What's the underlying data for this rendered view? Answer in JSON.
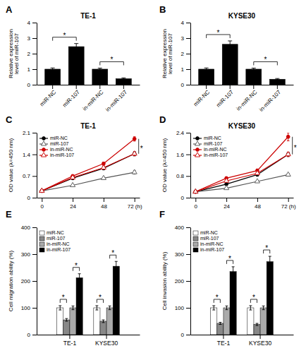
{
  "chart_data": [
    {
      "type": "bar",
      "panel_label": "A",
      "title": "TE-1",
      "categories": [
        "miR-NC",
        "miR-107",
        "in-miR-NC",
        "in-miR-107"
      ],
      "values": [
        1.0,
        2.45,
        1.0,
        0.38
      ],
      "errors": [
        0.08,
        0.2,
        0.07,
        0.06
      ],
      "color": "black",
      "ylabel": "Relative expression\nlevel of miR-107",
      "ylim": [
        0,
        4
      ],
      "yticks": [
        0,
        1,
        2,
        3,
        4
      ],
      "annotations": [
        {
          "text": "*",
          "between": [
            "miR-NC",
            "miR-107"
          ]
        },
        {
          "text": "*",
          "between": [
            "in-miR-NC",
            "in-miR-107"
          ]
        }
      ]
    },
    {
      "type": "bar",
      "panel_label": "B",
      "title": "KYSE30",
      "categories": [
        "miR-NC",
        "miR-107",
        "in-miR-NC",
        "in-miR-107"
      ],
      "values": [
        1.0,
        2.6,
        1.0,
        0.35
      ],
      "errors": [
        0.08,
        0.22,
        0.07,
        0.05
      ],
      "color": "black",
      "ylabel": "Relative expression\nlevel of miR-107",
      "ylim": [
        0,
        4
      ],
      "yticks": [
        0,
        1,
        2,
        3,
        4
      ],
      "annotations": [
        {
          "text": "*",
          "between": [
            "miR-NC",
            "miR-107"
          ]
        },
        {
          "text": "*",
          "between": [
            "in-miR-NC",
            "in-miR-107"
          ]
        }
      ]
    },
    {
      "type": "line",
      "panel_label": "C",
      "title": "TE-1",
      "x": [
        0,
        24,
        48,
        72
      ],
      "xlim": [
        -4,
        76
      ],
      "xticks": [
        0,
        24,
        48,
        {
          "value": 72,
          "label": "72 (h)"
        }
      ],
      "ylabel": "OD value (λ=450 nm)",
      "ylim": [
        0,
        2.1
      ],
      "yticks": [
        0,
        0.7,
        1.4,
        2.1
      ],
      "legend": "top-left",
      "series": [
        {
          "name": "miR-NC",
          "color": "#000000",
          "marker": "circle",
          "values": [
            0.22,
            0.63,
            0.95,
            1.42
          ],
          "errors": [
            0.02,
            0.04,
            0.05,
            0.07
          ]
        },
        {
          "name": "miR-107",
          "color": "#555555",
          "marker": "triangle-open",
          "values": [
            0.22,
            0.4,
            0.63,
            0.82
          ],
          "errors": [
            0.02,
            0.03,
            0.04,
            0.06
          ]
        },
        {
          "name": "in-miR-NC",
          "color": "#cc0000",
          "marker": "circle",
          "values": [
            0.22,
            0.7,
            1.1,
            1.9
          ],
          "errors": [
            0.02,
            0.04,
            0.05,
            0.07
          ]
        },
        {
          "name": "in-miR-107",
          "color": "#cc0000",
          "marker": "triangle-open",
          "values": [
            0.22,
            0.65,
            0.97,
            1.42
          ],
          "errors": [
            0.02,
            0.04,
            0.05,
            0.06
          ]
        }
      ],
      "annotations": [
        {
          "text": "*",
          "y": [
            1.9,
            1.42
          ]
        }
      ]
    },
    {
      "type": "line",
      "panel_label": "D",
      "title": "KYSE30",
      "x": [
        0,
        24,
        48,
        72
      ],
      "xlim": [
        -4,
        76
      ],
      "xticks": [
        0,
        24,
        48,
        {
          "value": 72,
          "label": "72 (h)"
        }
      ],
      "ylabel": "OD value (λ=450 nm)",
      "ylim": [
        0,
        2.4
      ],
      "yticks": [
        0,
        0.8,
        1.6,
        2.4
      ],
      "legend": "top-left",
      "series": [
        {
          "name": "miR-NC",
          "color": "#000000",
          "marker": "circle",
          "values": [
            0.22,
            0.5,
            0.85,
            1.6
          ],
          "errors": [
            0.02,
            0.04,
            0.05,
            0.08
          ]
        },
        {
          "name": "miR-107",
          "color": "#555555",
          "marker": "triangle-open",
          "values": [
            0.22,
            0.35,
            0.6,
            0.85
          ],
          "errors": [
            0.02,
            0.03,
            0.04,
            0.05
          ]
        },
        {
          "name": "in-miR-NC",
          "color": "#cc0000",
          "marker": "circle",
          "values": [
            0.22,
            0.72,
            1.0,
            2.25
          ],
          "errors": [
            0.02,
            0.05,
            0.06,
            0.15
          ]
        },
        {
          "name": "in-miR-107",
          "color": "#cc0000",
          "marker": "triangle-open",
          "values": [
            0.22,
            0.62,
            0.9,
            1.6
          ],
          "errors": [
            0.02,
            0.04,
            0.05,
            0.08
          ]
        }
      ],
      "annotations": [
        {
          "text": "*",
          "y": [
            2.25,
            1.6
          ]
        }
      ]
    },
    {
      "type": "bar",
      "panel_label": "E",
      "categories": [
        "TE-1",
        "KYSE30"
      ],
      "series": [
        {
          "name": "miR-NC",
          "color": "white",
          "values": [
            100,
            100
          ],
          "errors": [
            8,
            8
          ]
        },
        {
          "name": "miR-107",
          "color": "#888888",
          "values": [
            55,
            50
          ],
          "errors": [
            5,
            5
          ]
        },
        {
          "name": "in-miR-NC",
          "color": "#aaaaaa",
          "values": [
            100,
            100
          ],
          "errors": [
            7,
            7
          ]
        },
        {
          "name": "in-miR-107",
          "color": "black",
          "values": [
            212,
            255
          ],
          "errors": [
            15,
            18
          ]
        }
      ],
      "ylabel": "Cell migration ability (%)",
      "ylim": [
        0,
        400
      ],
      "yticks": [
        0,
        100,
        200,
        300,
        400
      ],
      "legend": "top-left",
      "annotations": [
        {
          "text": "*",
          "group": "TE-1",
          "between": [
            "miR-NC",
            "miR-107"
          ]
        },
        {
          "text": "*",
          "group": "TE-1",
          "between": [
            "in-miR-NC",
            "in-miR-107"
          ]
        },
        {
          "text": "*",
          "group": "KYSE30",
          "between": [
            "miR-NC",
            "miR-107"
          ]
        },
        {
          "text": "*",
          "group": "KYSE30",
          "between": [
            "in-miR-NC",
            "in-miR-107"
          ]
        }
      ]
    },
    {
      "type": "bar",
      "panel_label": "F",
      "categories": [
        "TE-1",
        "KYSE30"
      ],
      "series": [
        {
          "name": "miR-NC",
          "color": "white",
          "values": [
            100,
            100
          ],
          "errors": [
            8,
            8
          ]
        },
        {
          "name": "miR-107",
          "color": "#888888",
          "values": [
            42,
            38
          ],
          "errors": [
            4,
            4
          ]
        },
        {
          "name": "in-miR-NC",
          "color": "#aaaaaa",
          "values": [
            100,
            100
          ],
          "errors": [
            7,
            7
          ]
        },
        {
          "name": "in-miR-107",
          "color": "black",
          "values": [
            235,
            272
          ],
          "errors": [
            18,
            20
          ]
        }
      ],
      "ylabel": "Cell invasion ability (%)",
      "ylim": [
        0,
        400
      ],
      "yticks": [
        0,
        100,
        200,
        300,
        400
      ],
      "legend": "top-left",
      "annotations": [
        {
          "text": "*",
          "group": "TE-1",
          "between": [
            "miR-NC",
            "miR-107"
          ]
        },
        {
          "text": "*",
          "group": "TE-1",
          "between": [
            "in-miR-NC",
            "in-miR-107"
          ]
        },
        {
          "text": "*",
          "group": "KYSE30",
          "between": [
            "miR-NC",
            "miR-107"
          ]
        },
        {
          "text": "*",
          "group": "KYSE30",
          "between": [
            "in-miR-NC",
            "in-miR-107"
          ]
        }
      ]
    }
  ]
}
